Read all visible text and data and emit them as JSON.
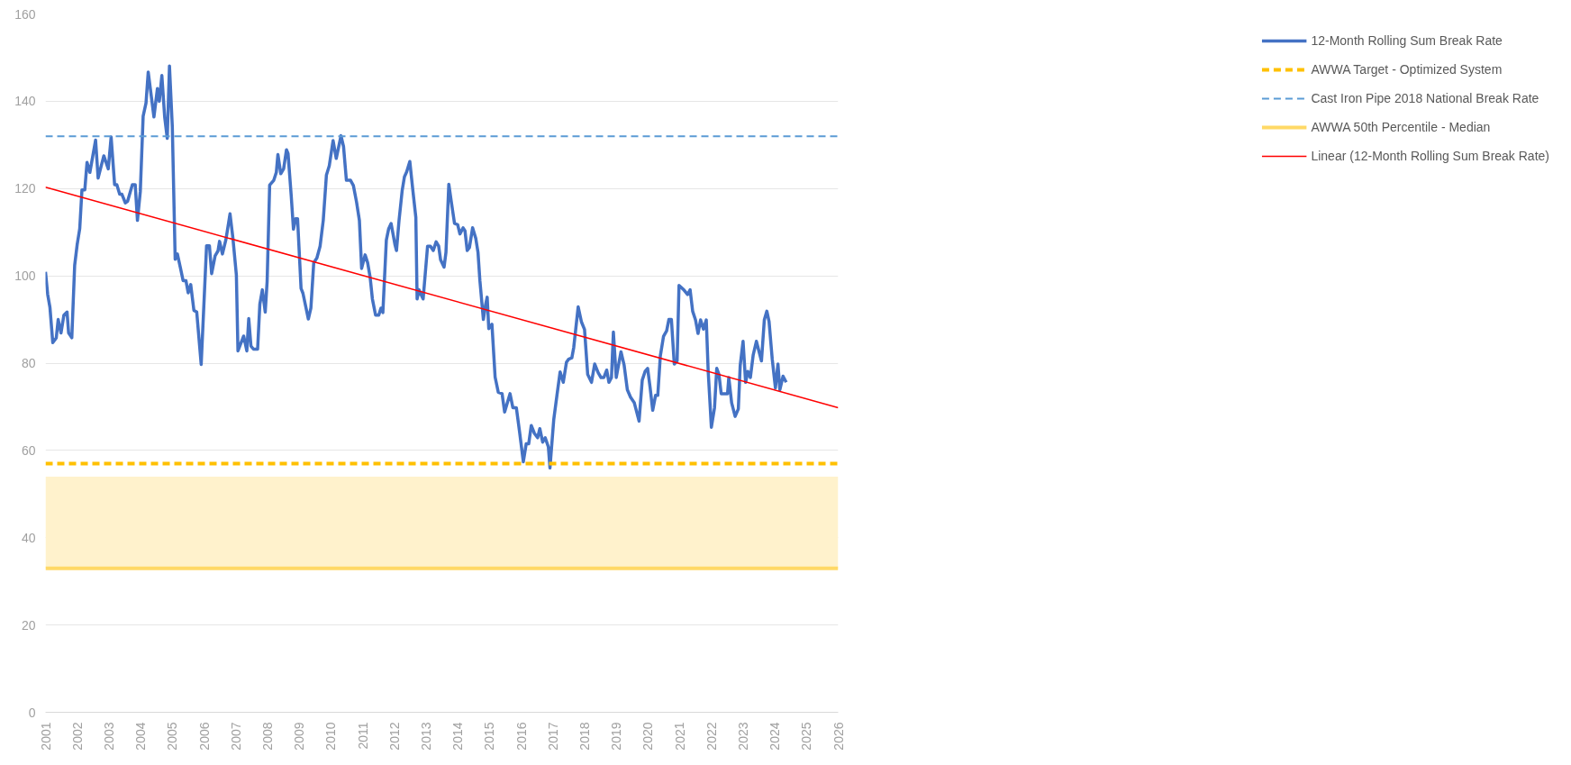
{
  "chart_data": {
    "type": "line",
    "xlim": [
      2001,
      2026
    ],
    "xticks": [
      2001,
      2002,
      2003,
      2004,
      2005,
      2006,
      2007,
      2008,
      2009,
      2010,
      2011,
      2012,
      2013,
      2014,
      2015,
      2016,
      2017,
      2018,
      2019,
      2020,
      2021,
      2022,
      2023,
      2024,
      2025,
      2026
    ],
    "ylim": [
      0,
      160
    ],
    "yticks": [
      0,
      20,
      40,
      60,
      80,
      100,
      120,
      140,
      160
    ],
    "grid": "y",
    "legend": "right",
    "series": [
      {
        "name": "12-Month Rolling Sum Break Rate",
        "color": "#4472c4",
        "x": [
          2001.0,
          2001.07,
          2001.14,
          2001.23,
          2001.34,
          2001.4,
          2001.49,
          2001.58,
          2001.68,
          2001.73,
          2001.83,
          2001.92,
          2002.0,
          2002.08,
          2002.15,
          2002.24,
          2002.31,
          2002.4,
          2002.58,
          2002.66,
          2002.84,
          2002.98,
          2003.07,
          2003.18,
          2003.25,
          2003.34,
          2003.41,
          2003.52,
          2003.59,
          2003.74,
          2003.83,
          2003.9,
          2003.99,
          2004.08,
          2004.17,
          2004.24,
          2004.42,
          2004.53,
          2004.59,
          2004.67,
          2004.76,
          2004.84,
          2004.91,
          2005.0,
          2005.09,
          2005.16,
          2005.25,
          2005.34,
          2005.43,
          2005.5,
          2005.58,
          2005.68,
          2005.77,
          2005.91,
          2006.08,
          2006.17,
          2006.24,
          2006.35,
          2006.44,
          2006.49,
          2006.58,
          2006.69,
          2006.82,
          2006.91,
          2007.02,
          2007.07,
          2007.25,
          2007.35,
          2007.41,
          2007.48,
          2007.56,
          2007.69,
          2007.76,
          2007.84,
          2007.93,
          2007.99,
          2008.07,
          2008.2,
          2008.28,
          2008.33,
          2008.42,
          2008.51,
          2008.6,
          2008.65,
          2008.75,
          2008.82,
          2008.89,
          2008.95,
          2009.06,
          2009.12,
          2009.29,
          2009.37,
          2009.46,
          2009.56,
          2009.66,
          2009.76,
          2009.86,
          2009.95,
          2010.07,
          2010.17,
          2010.32,
          2010.4,
          2010.49,
          2010.62,
          2010.71,
          2010.81,
          2010.9,
          2010.97,
          2011.08,
          2011.16,
          2011.24,
          2011.31,
          2011.41,
          2011.51,
          2011.58,
          2011.64,
          2011.75,
          2011.82,
          2011.9,
          2012.02,
          2012.07,
          2012.15,
          2012.25,
          2012.32,
          2012.39,
          2012.49,
          2012.59,
          2012.68,
          2012.72,
          2012.78,
          2012.82,
          2012.91,
          2013.05,
          2013.14,
          2013.23,
          2013.32,
          2013.4,
          2013.46,
          2013.57,
          2013.63,
          2013.72,
          2013.8,
          2013.9,
          2014.0,
          2014.07,
          2014.17,
          2014.23,
          2014.3,
          2014.37,
          2014.47,
          2014.57,
          2014.64,
          2014.7,
          2014.81,
          2014.88,
          2014.93,
          2014.98,
          2015.08,
          2015.18,
          2015.28,
          2015.4,
          2015.48,
          2015.65,
          2015.74,
          2015.85,
          2015.95,
          2016.07,
          2016.16,
          2016.24,
          2016.32,
          2016.42,
          2016.52,
          2016.59,
          2016.68,
          2016.76,
          2016.86,
          2016.91,
          2017.03,
          2017.13,
          2017.23,
          2017.33,
          2017.43,
          2017.5,
          2017.6,
          2017.66,
          2017.8,
          2017.9,
          2018.0,
          2018.1,
          2018.22,
          2018.32,
          2018.43,
          2018.52,
          2018.61,
          2018.7,
          2018.77,
          2018.85,
          2018.91,
          2019.0,
          2019.15,
          2019.25,
          2019.35,
          2019.45,
          2019.57,
          2019.72,
          2019.82,
          2019.91,
          2019.99,
          2020.07,
          2020.15,
          2020.24,
          2020.31,
          2020.39,
          2020.49,
          2020.59,
          2020.66,
          2020.74,
          2020.83,
          2020.92,
          2020.98,
          2021.13,
          2021.25,
          2021.33,
          2021.41,
          2021.5,
          2021.58,
          2021.66,
          2021.75,
          2021.84,
          2021.9,
          2022.0,
          2022.1,
          2022.17,
          2022.24,
          2022.31,
          2022.41,
          2022.51,
          2022.55,
          2022.64,
          2022.75,
          2022.85,
          2022.91,
          2023.0,
          2023.08,
          2023.15,
          2023.23,
          2023.32,
          2023.42,
          2023.48,
          2023.58,
          2023.67,
          2023.75,
          2023.82,
          2023.92,
          2024.02,
          2024.1,
          2024.16,
          2024.26,
          2024.36
        ],
        "values": [
          100.9,
          95.7,
          92.8,
          84.7,
          85.8,
          90,
          86.9,
          91,
          91.7,
          86.9,
          85.8,
          102.4,
          107.2,
          110.8,
          119.7,
          119.7,
          126,
          123.7,
          131.1,
          122.4,
          127.5,
          124.5,
          131.8,
          120.9,
          120.9,
          118.7,
          118.7,
          116.7,
          117.1,
          120.9,
          120.9,
          112.7,
          119.3,
          136.6,
          139.6,
          146.7,
          136.4,
          142.9,
          140,
          145.9,
          136.3,
          131.5,
          148.1,
          134.1,
          103.8,
          105,
          102,
          98.9,
          98.9,
          96.1,
          98,
          92.1,
          91.7,
          79.7,
          106.9,
          106.9,
          100.5,
          104.6,
          105.7,
          107.9,
          105,
          108.3,
          114.2,
          108.7,
          100.2,
          82.8,
          86.2,
          82.8,
          90.2,
          83.9,
          83.2,
          83.2,
          93.5,
          96.8,
          91.7,
          98.7,
          120.8,
          121.9,
          123.7,
          127.8,
          123.4,
          124.5,
          128.9,
          128,
          118.3,
          110.7,
          113.1,
          113.1,
          97.1,
          96,
          90.1,
          92.6,
          103,
          104.1,
          106.8,
          112.7,
          123.1,
          125.2,
          131,
          126.9,
          132.1,
          129.6,
          121.9,
          121.9,
          120.7,
          116.9,
          112.7,
          101.7,
          104.8,
          103,
          99.6,
          94.7,
          91,
          91,
          92.6,
          91.6,
          108.2,
          110.7,
          112,
          107.2,
          105.8,
          112.7,
          119.6,
          122.7,
          123.8,
          126.2,
          119.3,
          113.4,
          94.7,
          96.8,
          96.1,
          94.7,
          106.8,
          106.8,
          105.8,
          107.8,
          106.8,
          103.7,
          102,
          105.4,
          121,
          116.9,
          112,
          111.7,
          109.6,
          111,
          110.3,
          105.8,
          106.5,
          111,
          108.6,
          105.4,
          98.9,
          90,
          93.4,
          95.1,
          87.9,
          88.9,
          76.8,
          73.3,
          73,
          68.8,
          73,
          69.8,
          69.8,
          64.3,
          57.4,
          61.5,
          61.5,
          65.7,
          63.9,
          62.9,
          65,
          61.9,
          62.9,
          60.8,
          56,
          67.1,
          72.6,
          78,
          75.6,
          80.2,
          80.9,
          81.2,
          83.6,
          92.9,
          89.5,
          87.7,
          77.4,
          75.6,
          79.8,
          77.8,
          76.7,
          76.7,
          78.4,
          75.6,
          76.7,
          87.1,
          76.7,
          82.6,
          79.5,
          73.9,
          72.2,
          70.9,
          66.7,
          76.1,
          78.1,
          78.8,
          74.3,
          69.2,
          72.6,
          72.6,
          81.6,
          86.1,
          87.4,
          90,
          90,
          79.8,
          80.5,
          97.8,
          96.8,
          95.7,
          96.8,
          91.9,
          89.9,
          86.8,
          89.9,
          87.8,
          89.9,
          78.1,
          65.3,
          69.8,
          78.8,
          77.4,
          73,
          73,
          73,
          76.7,
          70.9,
          67.8,
          69.5,
          79.5,
          85,
          75.6,
          78.1,
          76.7,
          81.9,
          85,
          83.3,
          80.5,
          89.9,
          91.9,
          89.5,
          80.9,
          74.3,
          79.8,
          73.9,
          77,
          75.6
        ]
      },
      {
        "name": "Linear (12-Month Rolling Sum Break Rate)",
        "type": "line",
        "color": "#ff0000",
        "x": [
          2001,
          2026
        ],
        "values": [
          120.3,
          69.8
        ]
      }
    ],
    "ref_lines": [
      {
        "axis": "y",
        "value": 57,
        "label": "AWWA Target - Optimized System",
        "color": "#ffc000",
        "line_style": "dashed"
      },
      {
        "axis": "y",
        "value": 132,
        "label": "Cast Iron Pipe 2018 National Break Rate",
        "color": "#5b9bd5",
        "line_style": "dashed"
      },
      {
        "axis": "y",
        "value": 33,
        "label": "AWWA 50th Percentile - Median",
        "color": "#ffd966",
        "line_style": "solid"
      }
    ],
    "bands": [
      {
        "axis": "y",
        "from": 33,
        "to": 54,
        "color": "#fff2cc"
      }
    ]
  }
}
